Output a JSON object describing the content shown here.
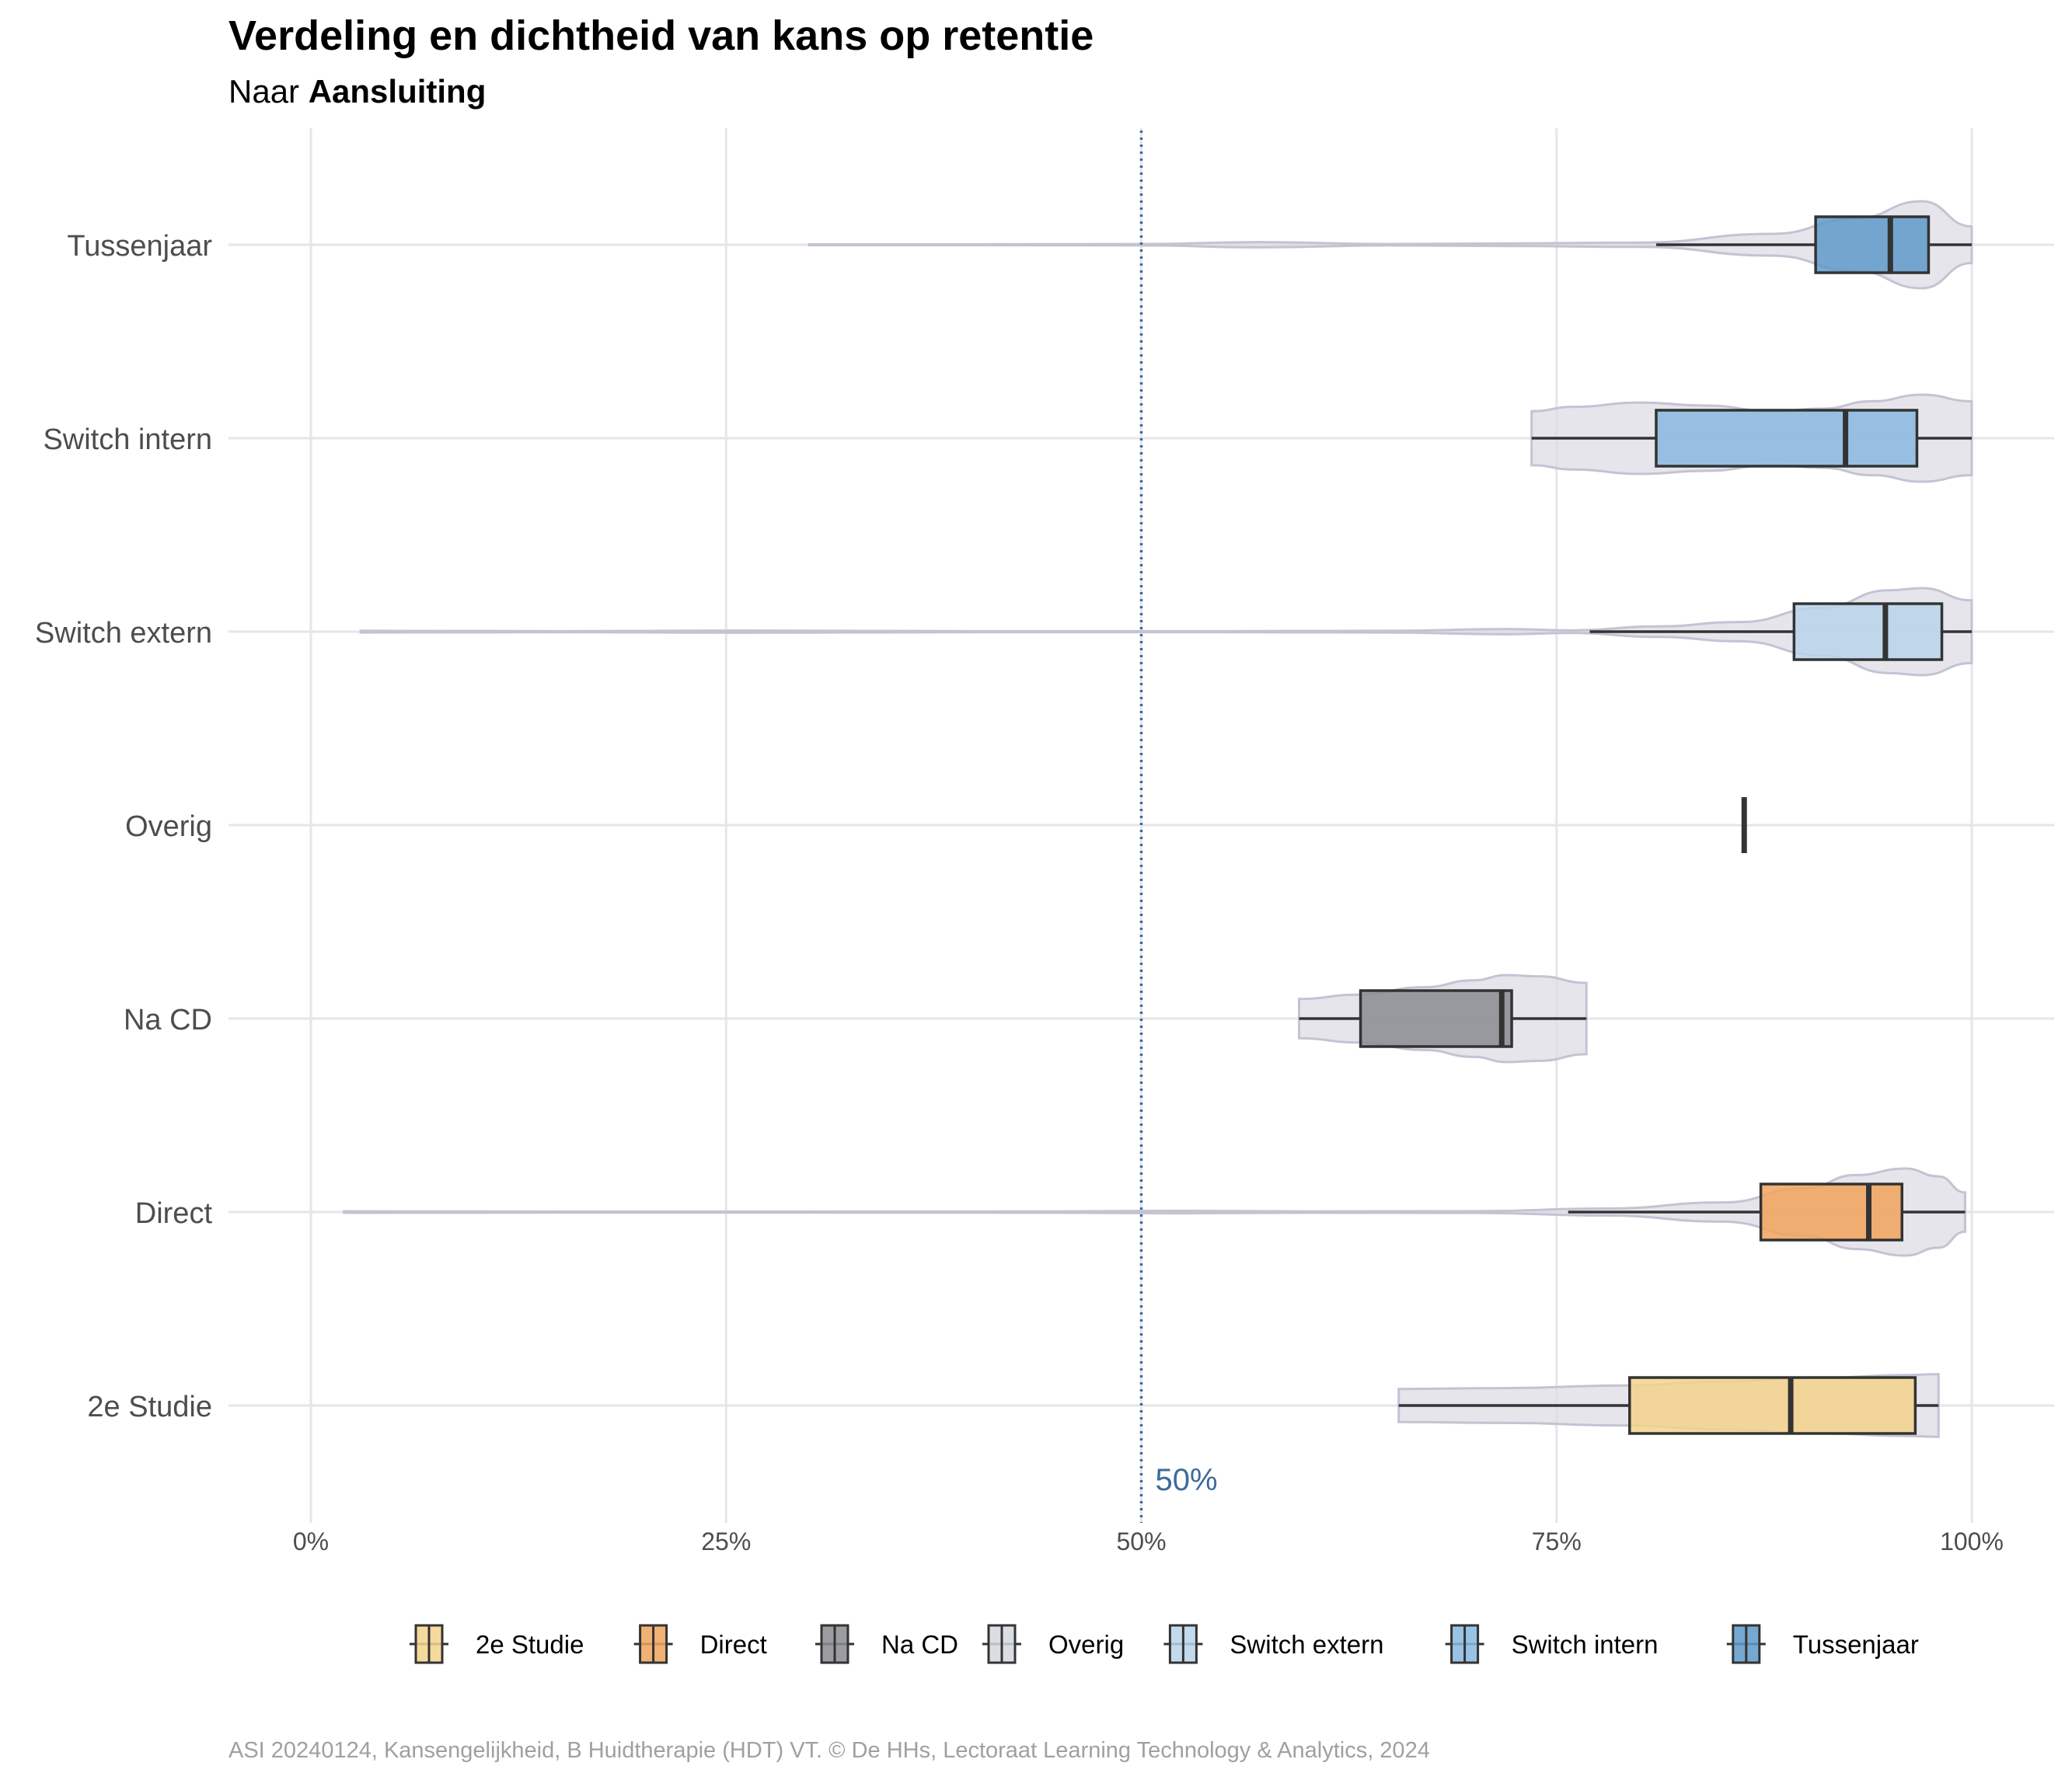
{
  "chart_data": {
    "type": "box",
    "title": "Verdeling en dichtheid van kans op retentie",
    "subtitle_prefix": "Naar ",
    "subtitle_bold": "Aansluiting",
    "xlabel": "",
    "ylabel": "",
    "xlim": [
      0,
      1
    ],
    "x_ticks": [
      "0%",
      "25%",
      "50%",
      "75%",
      "100%"
    ],
    "reference_line": {
      "value": 0.5,
      "label": "50%",
      "color": "#3e6a99",
      "style": "dotted"
    },
    "grid": true,
    "legend_position": "bottom",
    "categories": [
      "Tussenjaar",
      "Switch intern",
      "Switch extern",
      "Overig",
      "Na CD",
      "Direct",
      "2e Studie"
    ],
    "series": [
      {
        "name": "Tussenjaar",
        "color": "#5e9ac9",
        "box": {
          "whisker_low": 0.81,
          "q1": 0.906,
          "median": 0.951,
          "q3": 0.974,
          "whisker_high": 1.0
        },
        "violin": {
          "x": [
            0.3,
            0.4,
            0.5,
            0.57,
            0.65,
            0.72,
            0.8,
            0.88,
            0.93,
            0.97,
            1.0
          ],
          "width": [
            0.01,
            0.01,
            0.015,
            0.06,
            0.015,
            0.03,
            0.05,
            0.25,
            0.6,
            1.0,
            0.42
          ]
        }
      },
      {
        "name": "Switch intern",
        "color": "#87b9e0",
        "box": {
          "whisker_low": 0.735,
          "q1": 0.81,
          "median": 0.924,
          "q3": 0.967,
          "whisker_high": 1.0
        },
        "violin": {
          "x": [
            0.735,
            0.76,
            0.8,
            0.84,
            0.88,
            0.91,
            0.94,
            0.97,
            1.0
          ],
          "width": [
            0.62,
            0.72,
            0.82,
            0.75,
            0.62,
            0.68,
            0.85,
            1.0,
            0.85
          ]
        }
      },
      {
        "name": "Switch extern",
        "color": "#b7d3eb",
        "box": {
          "whisker_low": 0.77,
          "q1": 0.893,
          "median": 0.948,
          "q3": 0.982,
          "whisker_high": 1.0
        },
        "violin": {
          "x": [
            0.03,
            0.15,
            0.26,
            0.4,
            0.55,
            0.65,
            0.72,
            0.76,
            0.81,
            0.86,
            0.91,
            0.95,
            0.97,
            1.0
          ],
          "width": [
            0.02,
            0.012,
            0.025,
            0.012,
            0.012,
            0.02,
            0.06,
            0.03,
            0.12,
            0.22,
            0.55,
            0.95,
            1.0,
            0.72
          ]
        }
      },
      {
        "name": "Overig",
        "color": "#d4d8dd",
        "box": {
          "whisker_low": 0.863,
          "q1": 0.863,
          "median": 0.863,
          "q3": 0.863,
          "whisker_high": 0.863
        },
        "violin": {
          "x": [],
          "width": []
        }
      },
      {
        "name": "Na CD",
        "color": "#8a8c91",
        "box": {
          "whisker_low": 0.595,
          "q1": 0.632,
          "median": 0.717,
          "q3": 0.723,
          "whisker_high": 0.768
        },
        "violin": {
          "x": [
            0.595,
            0.63,
            0.67,
            0.7,
            0.72,
            0.74,
            0.768
          ],
          "width": [
            0.45,
            0.55,
            0.72,
            0.88,
            1.0,
            0.97,
            0.82
          ]
        }
      },
      {
        "name": "Direct",
        "color": "#f0a35c",
        "box": {
          "whisker_low": 0.757,
          "q1": 0.873,
          "median": 0.938,
          "q3": 0.958,
          "whisker_high": 0.996
        },
        "violin": {
          "x": [
            0.02,
            0.15,
            0.3,
            0.45,
            0.52,
            0.6,
            0.7,
            0.78,
            0.85,
            0.9,
            0.93,
            0.96,
            0.98,
            0.996
          ],
          "width": [
            0.018,
            0.012,
            0.012,
            0.015,
            0.03,
            0.015,
            0.02,
            0.08,
            0.22,
            0.55,
            0.85,
            1.0,
            0.82,
            0.45
          ]
        }
      },
      {
        "name": "2e Studie",
        "color": "#f3d28c",
        "box": {
          "whisker_low": 0.655,
          "q1": 0.794,
          "median": 0.891,
          "q3": 0.966,
          "whisker_high": 0.98
        },
        "violin": {
          "x": [
            0.655,
            0.72,
            0.79,
            0.85,
            0.91,
            0.96,
            0.98
          ],
          "width": [
            0.38,
            0.4,
            0.46,
            0.55,
            0.64,
            0.7,
            0.72
          ]
        }
      }
    ],
    "legend": [
      "2e Studie",
      "Direct",
      "Na CD",
      "Overig",
      "Switch extern",
      "Switch intern",
      "Tussenjaar"
    ],
    "caption": "ASI 20240124, Kansengelijkheid, B Huidtherapie (HDT) VT. © De HHs, Lectoraat Learning Technology & Analytics, 2024"
  }
}
